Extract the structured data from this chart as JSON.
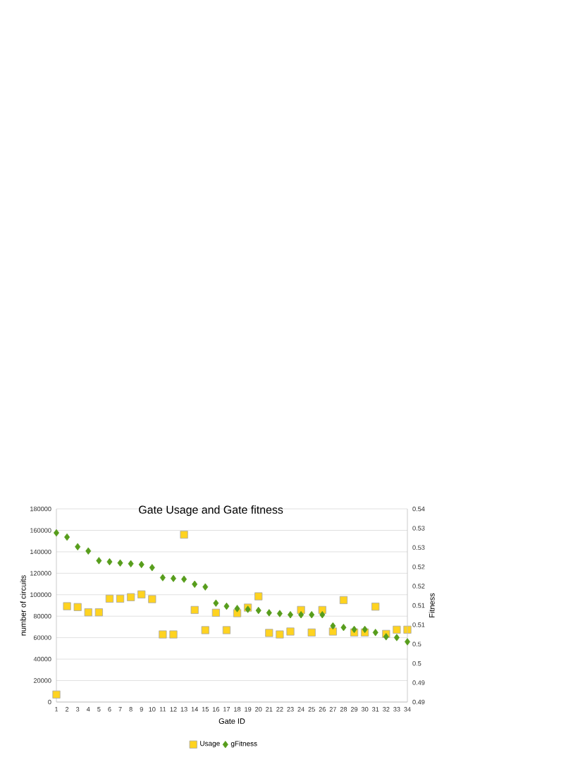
{
  "chart_data": {
    "type": "scatter",
    "title": "Gate Usage and Gate fitness",
    "xlabel": "Gate ID",
    "ylabel": "number of circuits",
    "y2label": "Fitness",
    "categories": [
      "1",
      "2",
      "3",
      "4",
      "5",
      "6",
      "7",
      "8",
      "9",
      "10",
      "11",
      "12",
      "13",
      "14",
      "15",
      "16",
      "17",
      "18",
      "19",
      "20",
      "21",
      "22",
      "23",
      "24",
      "25",
      "26",
      "27",
      "28",
      "29",
      "30",
      "31",
      "32",
      "33",
      "34"
    ],
    "series": [
      {
        "name": "Usage",
        "color": "#ffd320",
        "marker": "square",
        "values": [
          7000,
          89300,
          88500,
          83600,
          83600,
          96300,
          96300,
          97700,
          100300,
          95900,
          63000,
          63000,
          156000,
          85800,
          67000,
          83200,
          67000,
          82800,
          88000,
          98500,
          64400,
          63000,
          65700,
          85800,
          64800,
          85800,
          65700,
          95000,
          64800,
          64800,
          88900,
          63500,
          67400,
          67400
        ]
      },
      {
        "name": "gFitness",
        "color": "#579d1c",
        "marker": "diamond",
        "axis": "y2",
        "values": [
          0.5338,
          0.5327,
          0.5302,
          0.5291,
          0.5266,
          0.5263,
          0.526,
          0.5258,
          0.5256,
          0.5248,
          0.5222,
          0.522,
          0.5218,
          0.5205,
          0.5198,
          0.5156,
          0.5148,
          0.5142,
          0.514,
          0.5137,
          0.5131,
          0.5129,
          0.5126,
          0.5126,
          0.5126,
          0.5126,
          0.5097,
          0.5093,
          0.5088,
          0.5088,
          0.508,
          0.5069,
          0.5067,
          0.5056
        ]
      }
    ],
    "ylim": [
      0,
      180000
    ],
    "yticks": [
      0,
      20000,
      40000,
      60000,
      80000,
      100000,
      120000,
      140000,
      160000,
      180000
    ],
    "y2lim": [
      0.49,
      0.54
    ],
    "y2ticks": [
      0.49,
      {
        "value": 0.495,
        "label": "0.49"
      },
      0.5,
      {
        "value": 0.505,
        "label": "0.5"
      },
      0.51,
      {
        "value": 0.515,
        "label": "0.51"
      },
      0.52,
      {
        "value": 0.525,
        "label": "0.52"
      },
      0.53,
      {
        "value": 0.535,
        "label": "0.53"
      },
      0.54
    ],
    "grid": "y",
    "legend": "bottom"
  }
}
